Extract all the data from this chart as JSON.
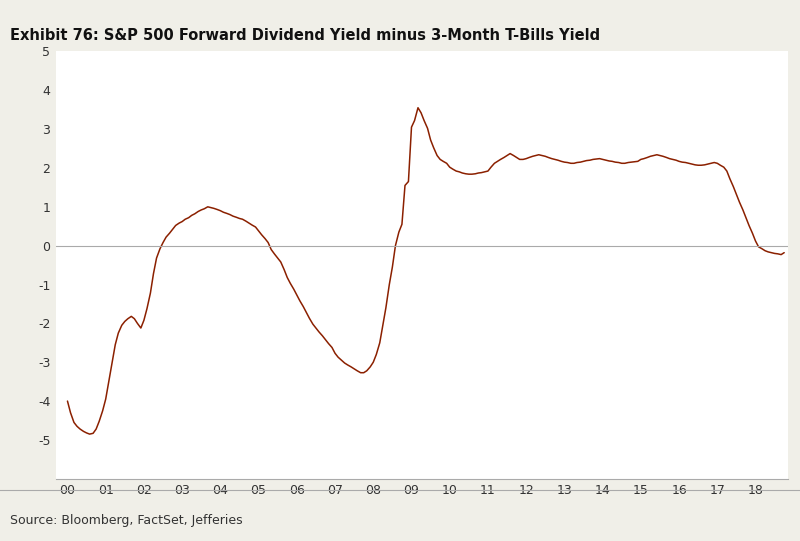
{
  "title": "Exhibit 76: S&P 500 Forward Dividend Yield minus 3-Month T-Bills Yield",
  "source_text": "Source: Bloomberg, FactSet, Jefferies",
  "line_color": "#8B2000",
  "bg_color": "#FFFFFF",
  "outer_bg": "#F0EFE8",
  "header_bar_color": "#8B2000",
  "ylim": [
    -6,
    5
  ],
  "yticks": [
    -5,
    -4,
    -3,
    -2,
    -1,
    0,
    1,
    2,
    3,
    4,
    5
  ],
  "xtick_labels": [
    "00",
    "01",
    "02",
    "03",
    "04",
    "05",
    "06",
    "07",
    "08",
    "09",
    "10",
    "11",
    "12",
    "13",
    "14",
    "15",
    "16",
    "17",
    "18"
  ],
  "data_x": [
    0.0,
    0.08,
    0.17,
    0.25,
    0.33,
    0.42,
    0.5,
    0.58,
    0.67,
    0.75,
    0.83,
    0.92,
    1.0,
    1.08,
    1.17,
    1.25,
    1.33,
    1.42,
    1.5,
    1.58,
    1.67,
    1.75,
    1.83,
    1.92,
    2.0,
    2.08,
    2.17,
    2.25,
    2.33,
    2.42,
    2.5,
    2.58,
    2.67,
    2.75,
    2.83,
    2.92,
    3.0,
    3.08,
    3.17,
    3.25,
    3.33,
    3.42,
    3.5,
    3.58,
    3.67,
    3.75,
    3.83,
    3.92,
    4.0,
    4.08,
    4.17,
    4.25,
    4.33,
    4.42,
    4.5,
    4.58,
    4.67,
    4.75,
    4.83,
    4.92,
    5.0,
    5.08,
    5.17,
    5.25,
    5.33,
    5.42,
    5.5,
    5.58,
    5.67,
    5.75,
    5.83,
    5.92,
    6.0,
    6.08,
    6.17,
    6.25,
    6.33,
    6.42,
    6.5,
    6.58,
    6.67,
    6.75,
    6.83,
    6.92,
    7.0,
    7.08,
    7.17,
    7.25,
    7.33,
    7.42,
    7.5,
    7.58,
    7.67,
    7.75,
    7.83,
    7.92,
    8.0,
    8.08,
    8.17,
    8.25,
    8.33,
    8.42,
    8.5,
    8.58,
    8.67,
    8.75,
    8.83,
    8.92,
    9.0,
    9.08,
    9.17,
    9.25,
    9.33,
    9.42,
    9.5,
    9.58,
    9.67,
    9.75,
    9.83,
    9.92,
    10.0,
    10.08,
    10.17,
    10.25,
    10.33,
    10.42,
    10.5,
    10.58,
    10.67,
    10.75,
    10.83,
    10.92,
    11.0,
    11.08,
    11.17,
    11.25,
    11.33,
    11.42,
    11.5,
    11.58,
    11.67,
    11.75,
    11.83,
    11.92,
    12.0,
    12.08,
    12.17,
    12.25,
    12.33,
    12.42,
    12.5,
    12.58,
    12.67,
    12.75,
    12.83,
    12.92,
    13.0,
    13.08,
    13.17,
    13.25,
    13.33,
    13.42,
    13.5,
    13.58,
    13.67,
    13.75,
    13.83,
    13.92,
    14.0,
    14.08,
    14.17,
    14.25,
    14.33,
    14.42,
    14.5,
    14.58,
    14.67,
    14.75,
    14.83,
    14.92,
    15.0,
    15.08,
    15.17,
    15.25,
    15.33,
    15.42,
    15.5,
    15.58,
    15.67,
    15.75,
    15.83,
    15.92,
    16.0,
    16.08,
    16.17,
    16.25,
    16.33,
    16.42,
    16.5,
    16.58,
    16.67,
    16.75,
    16.83,
    16.92,
    17.0,
    17.08,
    17.17,
    17.25,
    17.33,
    17.42,
    17.5,
    17.58,
    17.67,
    17.75,
    17.83,
    17.92,
    18.0,
    18.08,
    18.17,
    18.25,
    18.33,
    18.42,
    18.5,
    18.58,
    18.67,
    18.75
  ],
  "data_y": [
    -4.0,
    -4.3,
    -4.55,
    -4.65,
    -4.72,
    -4.78,
    -4.82,
    -4.85,
    -4.83,
    -4.72,
    -4.52,
    -4.25,
    -3.95,
    -3.5,
    -3.0,
    -2.55,
    -2.25,
    -2.05,
    -1.95,
    -1.88,
    -1.82,
    -1.88,
    -2.0,
    -2.12,
    -1.92,
    -1.62,
    -1.22,
    -0.72,
    -0.32,
    -0.08,
    0.08,
    0.22,
    0.32,
    0.42,
    0.52,
    0.58,
    0.62,
    0.68,
    0.72,
    0.78,
    0.82,
    0.88,
    0.92,
    0.95,
    1.0,
    0.98,
    0.96,
    0.93,
    0.9,
    0.86,
    0.83,
    0.8,
    0.76,
    0.73,
    0.7,
    0.68,
    0.63,
    0.58,
    0.53,
    0.48,
    0.38,
    0.28,
    0.18,
    0.08,
    -0.1,
    -0.22,
    -0.32,
    -0.42,
    -0.62,
    -0.82,
    -0.97,
    -1.12,
    -1.27,
    -1.42,
    -1.57,
    -1.72,
    -1.87,
    -2.02,
    -2.12,
    -2.22,
    -2.32,
    -2.42,
    -2.52,
    -2.62,
    -2.77,
    -2.87,
    -2.95,
    -3.02,
    -3.07,
    -3.12,
    -3.17,
    -3.22,
    -3.27,
    -3.27,
    -3.22,
    -3.12,
    -3.0,
    -2.8,
    -2.5,
    -2.05,
    -1.6,
    -1.0,
    -0.55,
    0.0,
    0.35,
    0.55,
    1.55,
    1.65,
    3.05,
    3.22,
    3.55,
    3.42,
    3.22,
    3.02,
    2.72,
    2.52,
    2.32,
    2.22,
    2.17,
    2.12,
    2.02,
    1.97,
    1.92,
    1.9,
    1.87,
    1.85,
    1.84,
    1.84,
    1.85,
    1.87,
    1.88,
    1.9,
    1.92,
    2.02,
    2.12,
    2.17,
    2.22,
    2.27,
    2.32,
    2.37,
    2.32,
    2.27,
    2.22,
    2.22,
    2.24,
    2.27,
    2.3,
    2.32,
    2.34,
    2.32,
    2.3,
    2.27,
    2.24,
    2.22,
    2.2,
    2.17,
    2.15,
    2.14,
    2.12,
    2.12,
    2.14,
    2.15,
    2.17,
    2.19,
    2.2,
    2.22,
    2.23,
    2.24,
    2.22,
    2.2,
    2.18,
    2.17,
    2.15,
    2.14,
    2.12,
    2.12,
    2.14,
    2.15,
    2.16,
    2.17,
    2.22,
    2.24,
    2.27,
    2.3,
    2.32,
    2.34,
    2.32,
    2.3,
    2.27,
    2.24,
    2.22,
    2.2,
    2.17,
    2.15,
    2.14,
    2.12,
    2.1,
    2.08,
    2.07,
    2.07,
    2.08,
    2.1,
    2.12,
    2.14,
    2.12,
    2.07,
    2.02,
    1.92,
    1.72,
    1.52,
    1.32,
    1.12,
    0.92,
    0.72,
    0.52,
    0.32,
    0.12,
    -0.03,
    -0.08,
    -0.13,
    -0.16,
    -0.18,
    -0.2,
    -0.21,
    -0.23,
    -0.18
  ]
}
